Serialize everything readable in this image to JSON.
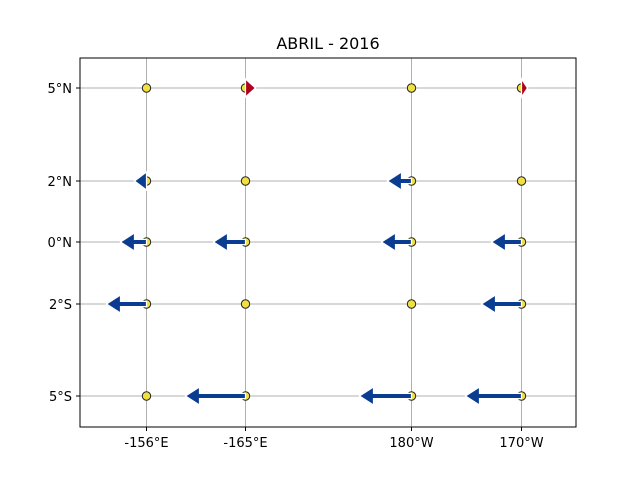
{
  "chart_data": {
    "type": "quiver",
    "title": "ABRIL - 2016",
    "xlabel": "",
    "ylabel": "",
    "grid": true,
    "x_ticks": [
      {
        "value": 1,
        "label": "-156°E"
      },
      {
        "value": 2,
        "label": "-165°E"
      },
      {
        "value": 3,
        "label": "180°W"
      },
      {
        "value": 4,
        "label": "170°W"
      }
    ],
    "y_ticks": [
      {
        "value": 5,
        "label": "5°N"
      },
      {
        "value": 2,
        "label": "2°N"
      },
      {
        "value": 0,
        "label": "0°N"
      },
      {
        "value": -2,
        "label": "2°S"
      },
      {
        "value": -5,
        "label": "5°S"
      }
    ],
    "ylim": [
      -6,
      6
    ],
    "colors": {
      "west": "#0a3d91",
      "east": "#b00020",
      "buoy": "#f0e040",
      "grid": "#b0b0b0"
    },
    "points": [
      {
        "x": 1,
        "y": 5,
        "u": 0
      },
      {
        "x": 2,
        "y": 5,
        "u": 0.5
      },
      {
        "x": 3,
        "y": 5,
        "u": 0
      },
      {
        "x": 4,
        "y": 5,
        "u": 0.3
      },
      {
        "x": 1,
        "y": 2,
        "u": -0.6
      },
      {
        "x": 2,
        "y": 2,
        "u": 0
      },
      {
        "x": 3,
        "y": 2,
        "u": -1.2
      },
      {
        "x": 4,
        "y": 2,
        "u": 0
      },
      {
        "x": 1,
        "y": 0,
        "u": -1.3
      },
      {
        "x": 2,
        "y": 0,
        "u": -1.6
      },
      {
        "x": 3,
        "y": 0,
        "u": -1.5
      },
      {
        "x": 4,
        "y": 0,
        "u": -1.5
      },
      {
        "x": 1,
        "y": -2,
        "u": -2.0
      },
      {
        "x": 2,
        "y": -2,
        "u": 0
      },
      {
        "x": 3,
        "y": -2,
        "u": 0
      },
      {
        "x": 4,
        "y": -2,
        "u": -2.0
      },
      {
        "x": 1,
        "y": -5,
        "u": 0
      },
      {
        "x": 2,
        "y": -5,
        "u": -3.0
      },
      {
        "x": 3,
        "y": -5,
        "u": -2.6
      },
      {
        "x": 4,
        "y": -5,
        "u": -2.8
      }
    ]
  }
}
